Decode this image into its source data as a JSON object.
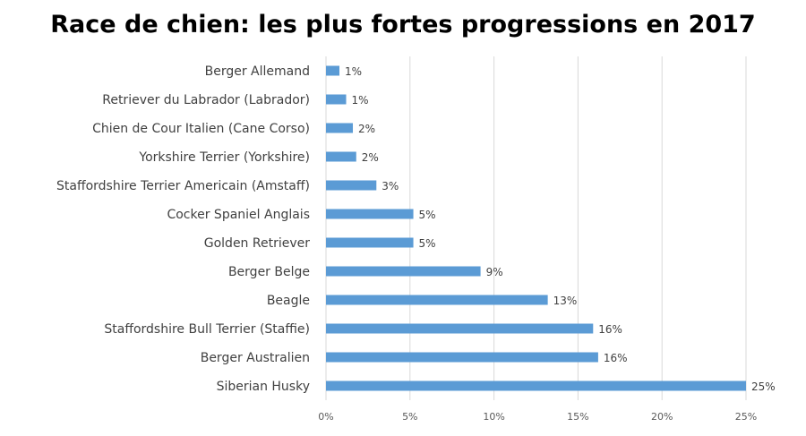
{
  "chart_data": {
    "type": "bar",
    "orientation": "horizontal",
    "title": "Race de chien: les plus fortes progressions en 2017",
    "categories": [
      "Berger Allemand",
      "Retriever du Labrador (Labrador)",
      "Chien de Cour Italien (Cane Corso)",
      "Yorkshire Terrier (Yorkshire)",
      "Staffordshire Terrier Americain (Amstaff)",
      "Cocker Spaniel Anglais",
      "Golden Retriever",
      "Berger Belge",
      "Beagle",
      "Staffordshire Bull Terrier (Staffie)",
      "Berger Australien",
      "Siberian Husky"
    ],
    "values": [
      0.8,
      1.2,
      1.6,
      1.8,
      3.0,
      5.2,
      5.2,
      9.2,
      13.2,
      15.9,
      16.2,
      25.0
    ],
    "value_labels": [
      "1%",
      "1%",
      "2%",
      "2%",
      "3%",
      "5%",
      "5%",
      "9%",
      "13%",
      "16%",
      "16%",
      "25%"
    ],
    "xlim": [
      0,
      25
    ],
    "x_ticks": [
      0,
      5,
      10,
      15,
      20,
      25
    ],
    "x_tick_labels": [
      "0%",
      "5%",
      "10%",
      "15%",
      "20%",
      "25%"
    ],
    "xlabel": "",
    "ylabel": "",
    "grid": true,
    "bar_color": "#5b9bd5"
  }
}
